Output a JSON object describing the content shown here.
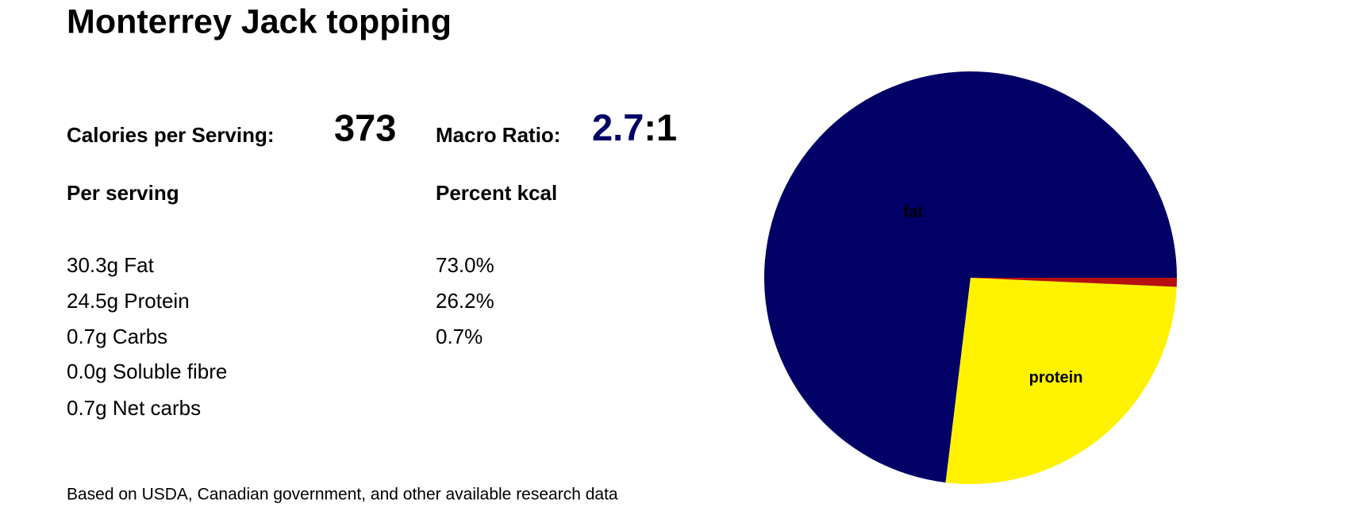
{
  "title": "Monterrey Jack topping",
  "calories": {
    "label": "Calories per Serving:",
    "value": "373"
  },
  "macro_ratio": {
    "label": "Macro Ratio:",
    "value": "2.7",
    "suffix": ":1"
  },
  "per_serving": {
    "heading": "Per serving",
    "rows": [
      "30.3g Fat",
      "24.5g Protein",
      "0.7g Carbs",
      "0.0g Soluble fibre",
      "0.7g Net carbs"
    ]
  },
  "percent_kcal": {
    "heading": "Percent kcal",
    "rows": [
      "73.0%",
      "26.2%",
      "0.7%"
    ]
  },
  "footnote": "Based on USDA, Canadian government, and other available research data",
  "chart_data": {
    "type": "pie",
    "categories": [
      "fat",
      "protein",
      null
    ],
    "values": [
      73.0,
      26.2,
      0.7
    ],
    "colors": [
      "#000066",
      "#fff200",
      "#b51010"
    ],
    "label_colors": [
      "#fff200",
      "#1a1aa6",
      null
    ]
  }
}
